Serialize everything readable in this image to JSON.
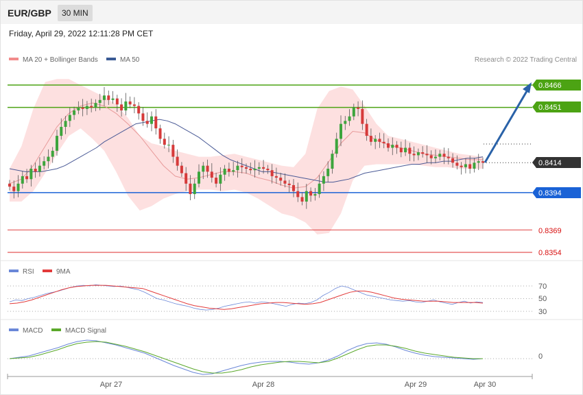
{
  "header": {
    "symbol": "EUR/GBP",
    "timeframe": "30 MIN",
    "datetime": "Friday, April 29, 2022 12:11:28 PM CET"
  },
  "legend": {
    "ma20_bb": "MA 20 + Bollinger Bands",
    "ma50": "MA 50",
    "credit": "Research © 2022 Trading Central",
    "rsi": "RSI",
    "rsi_ma": "9MA",
    "macd": "MACD",
    "macd_signal": "MACD Signal"
  },
  "colors": {
    "green_level": "#4ca313",
    "blue_level": "#1a62d6",
    "red_level": "#d81010",
    "current_tag": "#333333",
    "bb_fill": "#fde0e0",
    "ma20": "#e89a9a",
    "ma50": "#4a5a96",
    "rsi": "#6a87d8",
    "rsi_ma": "#e23a3a",
    "macd": "#6a87d8",
    "macd_signal": "#5aa82a",
    "candle_up": "#3da53d",
    "candle_down": "#d63a3a",
    "arrow": "#2a62a8"
  },
  "chart_data": {
    "type": "candlestick",
    "instrument": "EUR/GBP",
    "timeframe": "30 MIN",
    "price_levels": [
      {
        "value": 0.8466,
        "label": "0.8466",
        "kind": "resistance"
      },
      {
        "value": 0.8451,
        "label": "0.8451",
        "kind": "resistance"
      },
      {
        "value": 0.8414,
        "label": "0.8414",
        "kind": "current"
      },
      {
        "value": 0.8394,
        "label": "0.8394",
        "kind": "pivot"
      },
      {
        "value": 0.8369,
        "label": "0.8369",
        "kind": "support"
      },
      {
        "value": 0.8354,
        "label": "0.8354",
        "kind": "support"
      }
    ],
    "x_ticks": [
      "Apr 27",
      "Apr 28",
      "Apr 29",
      "Apr 30"
    ],
    "rsi_ticks": [
      "70",
      "50",
      "30"
    ],
    "macd_ticks": [
      "0"
    ],
    "close_series": [
      0.8398,
      0.8395,
      0.84,
      0.8405,
      0.8403,
      0.841,
      0.8408,
      0.8412,
      0.8415,
      0.8418,
      0.8422,
      0.8432,
      0.8438,
      0.8442,
      0.8446,
      0.8449,
      0.8451,
      0.845,
      0.8452,
      0.8451,
      0.8454,
      0.8456,
      0.8459,
      0.8456,
      0.8457,
      0.8453,
      0.8449,
      0.8455,
      0.8453,
      0.8452,
      0.8447,
      0.8442,
      0.844,
      0.8445,
      0.8437,
      0.843,
      0.8426,
      0.8426,
      0.8418,
      0.8412,
      0.8407,
      0.84,
      0.8393,
      0.84,
      0.8408,
      0.8412,
      0.8408,
      0.8404,
      0.84,
      0.8406,
      0.841,
      0.8408,
      0.8409,
      0.8412,
      0.8411,
      0.841,
      0.8409,
      0.841,
      0.8411,
      0.841,
      0.8409,
      0.8405,
      0.8404,
      0.8402,
      0.84,
      0.8399,
      0.8395,
      0.8391,
      0.8388,
      0.8395,
      0.8392,
      0.8393,
      0.84,
      0.8405,
      0.841,
      0.842,
      0.843,
      0.844,
      0.8442,
      0.8445,
      0.8451,
      0.845,
      0.844,
      0.8432,
      0.8428,
      0.843,
      0.8428,
      0.8427,
      0.8424,
      0.8426,
      0.8424,
      0.8421,
      0.8424,
      0.842,
      0.8419,
      0.8421,
      0.842,
      0.8419,
      0.8417,
      0.8418,
      0.842,
      0.8418,
      0.8417,
      0.8414,
      0.8412,
      0.8411,
      0.8413,
      0.841,
      0.8414,
      0.8415,
      0.8414
    ],
    "ma50_series": [
      0.841,
      0.8409,
      0.8408,
      0.8408,
      0.8408,
      0.8409,
      0.841,
      0.8412,
      0.8415,
      0.8418,
      0.8421,
      0.8424,
      0.8428,
      0.8431,
      0.8434,
      0.8437,
      0.844,
      0.8441,
      0.8442,
      0.8443,
      0.8442,
      0.844,
      0.8437,
      0.8434,
      0.8431,
      0.8427,
      0.8423,
      0.8419,
      0.8416,
      0.8414,
      0.8412,
      0.841,
      0.8408,
      0.8408,
      0.8407,
      0.8406,
      0.8405,
      0.8404,
      0.8403,
      0.8402,
      0.8401,
      0.8401,
      0.8402,
      0.8403,
      0.8405,
      0.8407,
      0.8408,
      0.8409,
      0.841,
      0.8411,
      0.8412,
      0.8413,
      0.8413,
      0.8414,
      0.8414,
      0.8415,
      0.8415,
      0.8416,
      0.8417,
      0.8417,
      0.8418
    ],
    "ma20_series": [
      0.84,
      0.8403,
      0.8412,
      0.8425,
      0.8438,
      0.8447,
      0.8452,
      0.8454,
      0.8452,
      0.8447,
      0.844,
      0.8432,
      0.8422,
      0.8412,
      0.8405,
      0.8403,
      0.8404,
      0.8406,
      0.8408,
      0.8408,
      0.8407,
      0.8404,
      0.8402,
      0.8399,
      0.8397,
      0.8398,
      0.8404,
      0.8415,
      0.8427,
      0.8435,
      0.8434,
      0.8429,
      0.8426,
      0.8424,
      0.8422,
      0.842,
      0.8419,
      0.8418,
      0.8417,
      0.8416,
      0.8416
    ],
    "bb_upper": [
      0.841,
      0.8425,
      0.845,
      0.8468,
      0.847,
      0.847,
      0.8466,
      0.8462,
      0.8458,
      0.8453,
      0.8444,
      0.8432,
      0.8427,
      0.8425,
      0.8422,
      0.842,
      0.8418,
      0.8418,
      0.8419,
      0.842,
      0.8418,
      0.8416,
      0.8414,
      0.8412,
      0.8411,
      0.842,
      0.845,
      0.8462,
      0.8465,
      0.8463,
      0.8452,
      0.844,
      0.8432,
      0.843,
      0.8428,
      0.8426,
      0.8424,
      0.8422,
      0.842,
      0.8419,
      0.8418
    ],
    "bb_lower": [
      0.8388,
      0.8388,
      0.8395,
      0.8407,
      0.842,
      0.8432,
      0.8437,
      0.843,
      0.8422,
      0.8408,
      0.8392,
      0.8382,
      0.8385,
      0.839,
      0.8393,
      0.8395,
      0.8396,
      0.8396,
      0.8395,
      0.8396,
      0.8394,
      0.839,
      0.8385,
      0.838,
      0.8378,
      0.8374,
      0.8366,
      0.8367,
      0.838,
      0.8402,
      0.8412,
      0.8413,
      0.8413,
      0.8413,
      0.8413,
      0.8412,
      0.8411,
      0.8411,
      0.841,
      0.841,
      0.841
    ],
    "rsi_series": [
      45,
      48,
      47,
      50,
      52,
      55,
      58,
      60,
      62,
      65,
      68,
      70,
      71,
      70,
      72,
      71,
      70,
      69,
      70,
      68,
      66,
      64,
      60,
      55,
      50,
      48,
      45,
      42,
      40,
      38,
      35,
      33,
      32,
      33,
      35,
      38,
      40,
      42,
      44,
      45,
      43,
      45,
      44,
      42,
      40,
      38,
      41,
      43,
      42,
      44,
      48,
      55,
      60,
      66,
      70,
      68,
      64,
      60,
      56,
      54,
      52,
      50,
      48,
      47,
      46,
      47,
      45,
      44,
      46,
      48,
      45,
      43,
      41,
      44,
      46,
      43,
      45,
      44
    ],
    "rsi_ma_series": [
      42,
      43,
      45,
      48,
      52,
      56,
      60,
      64,
      67,
      69,
      70,
      71,
      71,
      71,
      70,
      69,
      68,
      67,
      66,
      62,
      58,
      54,
      50,
      46,
      42,
      39,
      37,
      35,
      34,
      33,
      34,
      36,
      38,
      40,
      42,
      43,
      44,
      44,
      43,
      42,
      41,
      42,
      44,
      48,
      52,
      56,
      60,
      62,
      62,
      60,
      57,
      54,
      51,
      49,
      48,
      47,
      46,
      46,
      46,
      45,
      44,
      44,
      44,
      44,
      43
    ],
    "macd_series": [
      0.0,
      0.0002,
      0.0004,
      0.0008,
      0.0012,
      0.0016,
      0.0021,
      0.0025,
      0.0027,
      0.0026,
      0.0023,
      0.002,
      0.0016,
      0.0012,
      0.0008,
      0.0002,
      -0.0004,
      -0.001,
      -0.0015,
      -0.002,
      -0.0023,
      -0.0022,
      -0.0018,
      -0.0014,
      -0.001,
      -0.0007,
      -0.0005,
      -0.0004,
      -0.0004,
      -0.0005,
      -0.0007,
      -0.0008,
      -0.0006,
      -0.0002,
      0.0004,
      0.0012,
      0.0018,
      0.0022,
      0.0023,
      0.0021,
      0.0017,
      0.0012,
      0.0008,
      0.0005,
      0.0003,
      0.0002,
      0.0001,
      0.0,
      -0.0001,
      0.0
    ],
    "macd_signal_series": [
      0.0,
      0.0001,
      0.0002,
      0.0005,
      0.0009,
      0.0013,
      0.0018,
      0.0022,
      0.0024,
      0.0025,
      0.0024,
      0.0021,
      0.0018,
      0.0014,
      0.001,
      0.0005,
      0.0,
      -0.0005,
      -0.001,
      -0.0015,
      -0.0019,
      -0.0021,
      -0.0021,
      -0.0019,
      -0.0016,
      -0.0012,
      -0.0009,
      -0.0007,
      -0.0005,
      -0.0004,
      -0.0004,
      -0.0005,
      -0.0006,
      -0.0004,
      0.0001,
      0.0007,
      0.0013,
      0.0018,
      0.002,
      0.002,
      0.0018,
      0.0015,
      0.0011,
      0.0008,
      0.0006,
      0.0004,
      0.0002,
      0.0001,
      0.0,
      0.0
    ]
  }
}
